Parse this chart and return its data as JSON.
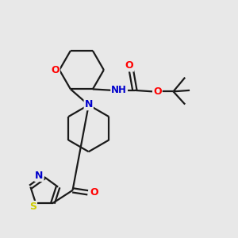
{
  "bg_color": "#e8e8e8",
  "bond_color": "#1a1a1a",
  "atom_colors": {
    "O": "#ff0000",
    "N": "#0000cc",
    "S": "#cccc00",
    "C": "#1a1a1a"
  },
  "lw": 1.6
}
